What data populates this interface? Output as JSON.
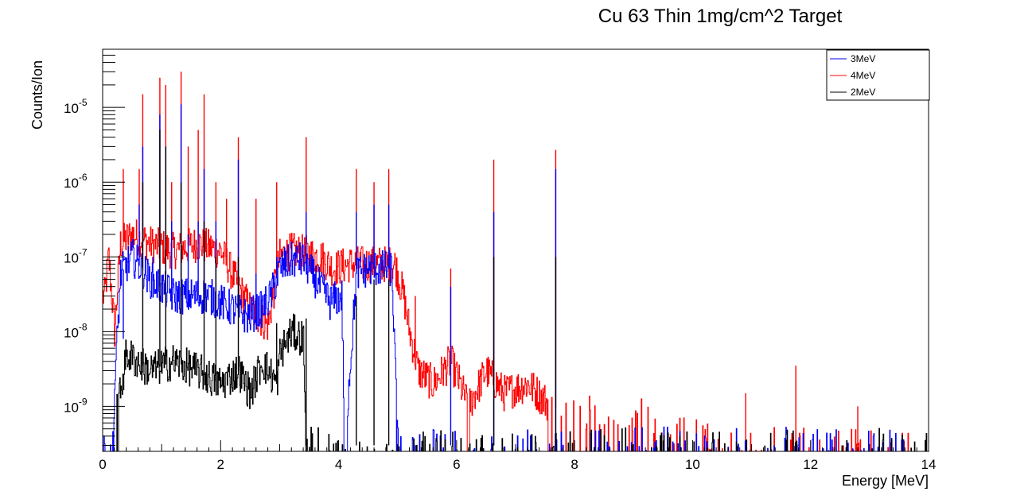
{
  "chart_data": {
    "type": "line",
    "title": "Cu 63 Thin 1mg/cm^2 Target",
    "xlabel": "Energy [MeV]",
    "ylabel": "Counts/Ion",
    "xlim": [
      0,
      14
    ],
    "ylim": [
      2.5e-10,
      6e-05
    ],
    "yscale": "log",
    "x_ticks": [
      0,
      2,
      4,
      6,
      8,
      10,
      12,
      14
    ],
    "y_tick_labels": [
      {
        "base": "10",
        "exp": "-9",
        "value": 1e-09
      },
      {
        "base": "10",
        "exp": "-8",
        "value": 1e-08
      },
      {
        "base": "10",
        "exp": "-7",
        "value": 1e-07
      },
      {
        "base": "10",
        "exp": "-6",
        "value": 1e-06
      },
      {
        "base": "10",
        "exp": "-5",
        "value": 1e-05
      }
    ],
    "legend_position": "top-right",
    "grid": false,
    "series": [
      {
        "name": "3MeV",
        "color": "#0000ff",
        "baseline": [
          [
            0.15,
            3e-10
          ],
          [
            0.3,
            6e-08
          ],
          [
            0.5,
            1e-07
          ],
          [
            0.8,
            5e-08
          ],
          [
            1.2,
            3e-08
          ],
          [
            1.8,
            3e-08
          ],
          [
            2.2,
            2e-08
          ],
          [
            2.45,
            1.6e-08
          ],
          [
            2.7,
            2e-08
          ],
          [
            2.85,
            3e-08
          ],
          [
            3.0,
            7e-08
          ],
          [
            3.2,
            9e-08
          ],
          [
            3.4,
            9e-08
          ],
          [
            3.6,
            5e-08
          ],
          [
            3.85,
            2.5e-08
          ],
          [
            4.05,
            3e-08
          ],
          [
            4.1,
            3e-10
          ],
          [
            4.3,
            6e-08
          ],
          [
            4.5,
            7e-08
          ],
          [
            4.9,
            7e-08
          ],
          [
            5.0,
            3e-10
          ],
          [
            14,
            3e-10
          ]
        ],
        "peaks": [
          [
            0.35,
            8e-09
          ],
          [
            0.62,
            5e-07
          ],
          [
            0.68,
            3e-06
          ],
          [
            0.85,
            1e-07
          ],
          [
            0.97,
            8e-06
          ],
          [
            1.07,
            3e-06
          ],
          [
            1.17,
            3e-07
          ],
          [
            1.33,
            1.1e-05
          ],
          [
            1.45,
            2e-07
          ],
          [
            1.62,
            3e-07
          ],
          [
            1.72,
            1.5e-06
          ],
          [
            1.92,
            3e-07
          ],
          [
            2.3,
            2e-06
          ],
          [
            2.6,
            6e-08
          ],
          [
            2.95,
            1e-07
          ],
          [
            3.45,
            4e-07
          ],
          [
            4.3,
            4e-07
          ],
          [
            4.6,
            5e-07
          ],
          [
            4.85,
            5e-07
          ],
          [
            5.9,
            4e-08
          ],
          [
            6.63,
            4e-07
          ],
          [
            7.68,
            1.5e-06
          ]
        ]
      },
      {
        "name": "4MeV",
        "color": "#ff0000",
        "baseline": [
          [
            0.03,
            3e-08
          ],
          [
            0.1,
            1e-07
          ],
          [
            0.2,
            1e-08
          ],
          [
            0.3,
            1.5e-07
          ],
          [
            0.5,
            2e-07
          ],
          [
            0.8,
            1.5e-07
          ],
          [
            1.2,
            1.2e-07
          ],
          [
            1.6,
            1.5e-07
          ],
          [
            2.0,
            1.2e-07
          ],
          [
            2.3,
            4e-08
          ],
          [
            2.5,
            2e-08
          ],
          [
            2.8,
            1.2e-08
          ],
          [
            3.0,
            1e-07
          ],
          [
            3.2,
            1.2e-07
          ],
          [
            3.45,
            1.1e-07
          ],
          [
            3.7,
            1e-07
          ],
          [
            3.9,
            7e-08
          ],
          [
            4.2,
            8e-08
          ],
          [
            4.6,
            8e-08
          ],
          [
            4.95,
            8e-08
          ],
          [
            5.1,
            3e-08
          ],
          [
            5.2,
            1e-08
          ],
          [
            5.35,
            3e-09
          ],
          [
            5.6,
            2e-09
          ],
          [
            5.9,
            4e-09
          ],
          [
            6.2,
            1e-09
          ],
          [
            6.5,
            3e-09
          ],
          [
            6.8,
            1.5e-09
          ],
          [
            7.2,
            2e-09
          ],
          [
            7.6,
            1e-09
          ],
          [
            8.2,
            8e-10
          ],
          [
            9.0,
            8e-10
          ],
          [
            10.5,
            3e-10
          ],
          [
            14,
            3e-10
          ]
        ],
        "peaks": [
          [
            0.35,
            1.5e-06
          ],
          [
            0.62,
            1.5e-06
          ],
          [
            0.68,
            1.5e-05
          ],
          [
            0.97,
            2.5e-05
          ],
          [
            1.07,
            2e-05
          ],
          [
            1.17,
            1e-06
          ],
          [
            1.33,
            3e-05
          ],
          [
            1.45,
            3e-06
          ],
          [
            1.62,
            5e-06
          ],
          [
            1.72,
            1.5e-05
          ],
          [
            1.92,
            1e-06
          ],
          [
            2.1,
            6e-07
          ],
          [
            2.3,
            4e-06
          ],
          [
            2.6,
            6e-07
          ],
          [
            2.95,
            1e-06
          ],
          [
            3.45,
            4e-06
          ],
          [
            4.3,
            1.5e-06
          ],
          [
            4.6,
            1e-06
          ],
          [
            4.85,
            1.5e-06
          ],
          [
            5.3,
            3e-08
          ],
          [
            5.9,
            7e-08
          ],
          [
            6.63,
            2e-06
          ],
          [
            7.68,
            2.7e-06
          ],
          [
            10.9,
            1.5e-09
          ],
          [
            11.75,
            3.5e-09
          ],
          [
            12.8,
            1e-09
          ]
        ]
      },
      {
        "name": "2MeV",
        "color": "#000000",
        "baseline": [
          [
            0.15,
            3e-10
          ],
          [
            0.4,
            5e-09
          ],
          [
            0.8,
            3e-09
          ],
          [
            1.2,
            4e-09
          ],
          [
            1.6,
            3e-09
          ],
          [
            2.0,
            2e-09
          ],
          [
            2.3,
            3e-09
          ],
          [
            2.5,
            1.5e-09
          ],
          [
            2.7,
            4e-09
          ],
          [
            2.95,
            2e-09
          ],
          [
            3.0,
            5e-09
          ],
          [
            3.2,
            1e-08
          ],
          [
            3.4,
            8e-09
          ],
          [
            3.45,
            3e-10
          ],
          [
            14,
            3e-10
          ]
        ],
        "peaks": [
          [
            0.68,
            1e-06
          ],
          [
            0.97,
            5e-06
          ],
          [
            1.07,
            3e-06
          ],
          [
            1.33,
            1e-06
          ],
          [
            1.72,
            3e-07
          ],
          [
            1.92,
            1e-07
          ],
          [
            2.3,
            1e-07
          ],
          [
            2.95,
            1.3e-08
          ],
          [
            3.45,
            1.5e-08
          ],
          [
            4.3,
            3e-08
          ],
          [
            4.6,
            5e-08
          ],
          [
            4.85,
            5e-08
          ],
          [
            6.63,
            1e-07
          ],
          [
            7.68,
            1e-07
          ]
        ]
      }
    ]
  }
}
